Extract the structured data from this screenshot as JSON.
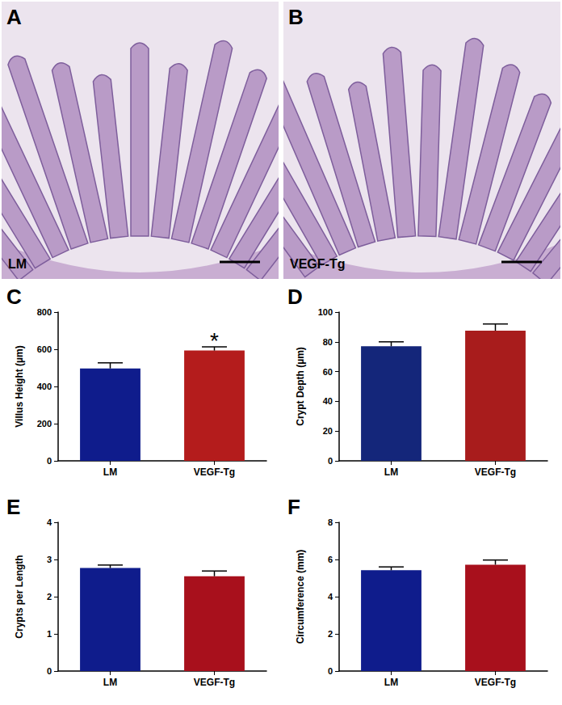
{
  "images": [
    {
      "panel_label": "A",
      "label": "LM"
    },
    {
      "panel_label": "B",
      "label": "VEGF-Tg"
    }
  ],
  "chart_data": [
    {
      "type": "bar",
      "panel_label": "C",
      "y_label": "Villus Height (µm)",
      "categories": [
        "LM",
        "VEGF-Tg"
      ],
      "values": [
        497,
        593
      ],
      "errors": [
        30,
        20
      ],
      "colors": [
        "#0f1c8c",
        "#b41c1c"
      ],
      "ylim": [
        0,
        800
      ],
      "yticks": [
        0,
        200,
        400,
        600,
        800
      ],
      "grid": false,
      "annotations": [
        {
          "category": "VEGF-Tg",
          "text": "*"
        }
      ]
    },
    {
      "type": "bar",
      "panel_label": "D",
      "y_label": "Crypt Depth (µm)",
      "categories": [
        "LM",
        "VEGF-Tg"
      ],
      "values": [
        77,
        87.5
      ],
      "errors": [
        3,
        4.5
      ],
      "colors": [
        "#14267a",
        "#a81c1c"
      ],
      "ylim": [
        0,
        100
      ],
      "yticks": [
        0,
        20,
        40,
        60,
        80,
        100
      ],
      "grid": false
    },
    {
      "type": "bar",
      "panel_label": "E",
      "y_label": "Crypts per Length",
      "categories": [
        "LM",
        "VEGF-Tg"
      ],
      "values": [
        2.77,
        2.55
      ],
      "errors": [
        0.08,
        0.14
      ],
      "colors": [
        "#0f1c8c",
        "#a8101c"
      ],
      "ylim": [
        0,
        4
      ],
      "yticks": [
        0,
        1,
        2,
        3,
        4
      ],
      "grid": false
    },
    {
      "type": "bar",
      "panel_label": "F",
      "y_label": "Circumference (mm)",
      "categories": [
        "LM",
        "VEGF-Tg"
      ],
      "values": [
        5.42,
        5.72
      ],
      "errors": [
        0.18,
        0.25
      ],
      "colors": [
        "#0f1c8c",
        "#a8101c"
      ],
      "ylim": [
        0,
        8
      ],
      "yticks": [
        0,
        2,
        4,
        6,
        8
      ],
      "grid": false
    }
  ]
}
